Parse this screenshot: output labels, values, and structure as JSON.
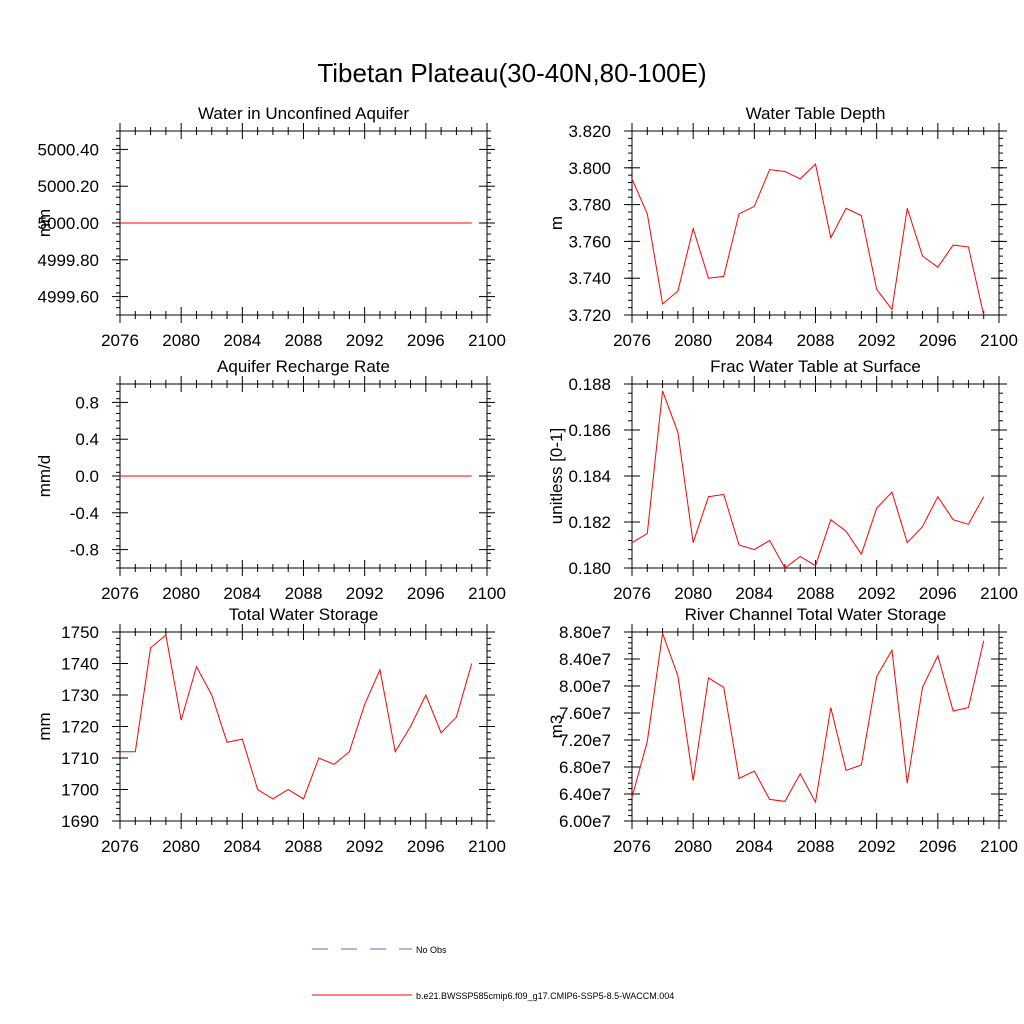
{
  "title": "Tibetan Plateau(30-40N,80-100E)",
  "colors": {
    "series": "#ff0000",
    "obs": "#6a6ab0",
    "axis": "#000000"
  },
  "legend": {
    "placement": "bottom-center",
    "entries": [
      {
        "label": "No Obs",
        "style": "dashed",
        "color": "#6a6ab0"
      },
      {
        "label": "b.e21.BWSSP585cmip6.f09_g17.CMIP6-SSP5-8.5-WACCM.004",
        "style": "solid",
        "color": "#ff0000"
      }
    ]
  },
  "chart_data": [
    {
      "type": "line",
      "title": "Water in Unconfined Aquifer",
      "ylabel": "mm",
      "xlim": [
        2076,
        2100
      ],
      "ylim": [
        4999.5,
        5000.5
      ],
      "xticks": [
        2076,
        2080,
        2084,
        2088,
        2092,
        2096,
        2100
      ],
      "xtick_labels": [
        "2076",
        "2080",
        "2084",
        "2088",
        "2092",
        "2096",
        "2100"
      ],
      "yticks": [
        4999.6,
        4999.8,
        5000.0,
        5000.2,
        5000.4
      ],
      "ytick_labels": [
        "4999.60",
        "4999.80",
        "5000.00",
        "5000.20",
        "5000.40"
      ],
      "x": [
        2076,
        2077,
        2078,
        2079,
        2080,
        2081,
        2082,
        2083,
        2084,
        2085,
        2086,
        2087,
        2088,
        2089,
        2090,
        2091,
        2092,
        2093,
        2094,
        2095,
        2096,
        2097,
        2098,
        2099
      ],
      "series": [
        {
          "values": [
            5000,
            5000,
            5000,
            5000,
            5000,
            5000,
            5000,
            5000,
            5000,
            5000,
            5000,
            5000,
            5000,
            5000,
            5000,
            5000,
            5000,
            5000,
            5000,
            5000,
            5000,
            5000,
            5000,
            5000
          ]
        }
      ]
    },
    {
      "type": "line",
      "title": "Water Table Depth",
      "ylabel": "m",
      "xlim": [
        2076,
        2100
      ],
      "ylim": [
        3.72,
        3.82
      ],
      "xticks": [
        2076,
        2080,
        2084,
        2088,
        2092,
        2096,
        2100
      ],
      "xtick_labels": [
        "2076",
        "2080",
        "2084",
        "2088",
        "2092",
        "2096",
        "2100"
      ],
      "yticks": [
        3.72,
        3.74,
        3.76,
        3.78,
        3.8,
        3.82
      ],
      "ytick_labels": [
        "3.720",
        "3.740",
        "3.760",
        "3.780",
        "3.800",
        "3.820"
      ],
      "x": [
        2076,
        2077,
        2078,
        2079,
        2080,
        2081,
        2082,
        2083,
        2084,
        2085,
        2086,
        2087,
        2088,
        2089,
        2090,
        2091,
        2092,
        2093,
        2094,
        2095,
        2096,
        2097,
        2098,
        2099
      ],
      "series": [
        {
          "values": [
            3.794,
            3.775,
            3.726,
            3.733,
            3.767,
            3.74,
            3.741,
            3.775,
            3.779,
            3.799,
            3.798,
            3.794,
            3.802,
            3.762,
            3.778,
            3.774,
            3.734,
            3.723,
            3.778,
            3.752,
            3.746,
            3.758,
            3.757,
            3.72
          ]
        }
      ]
    },
    {
      "type": "line",
      "title": "Aquifer Recharge Rate",
      "ylabel": "mm/d",
      "xlim": [
        2076,
        2100
      ],
      "ylim": [
        -1.0,
        1.0
      ],
      "xticks": [
        2076,
        2080,
        2084,
        2088,
        2092,
        2096,
        2100
      ],
      "xtick_labels": [
        "2076",
        "2080",
        "2084",
        "2088",
        "2092",
        "2096",
        "2100"
      ],
      "yticks": [
        -0.8,
        -0.4,
        0.0,
        0.4,
        0.8
      ],
      "ytick_labels": [
        "-0.8",
        "-0.4",
        "0.0",
        "0.4",
        "0.8"
      ],
      "x": [
        2076,
        2077,
        2078,
        2079,
        2080,
        2081,
        2082,
        2083,
        2084,
        2085,
        2086,
        2087,
        2088,
        2089,
        2090,
        2091,
        2092,
        2093,
        2094,
        2095,
        2096,
        2097,
        2098,
        2099
      ],
      "series": [
        {
          "values": [
            0,
            0,
            0,
            0,
            0,
            0,
            0,
            0,
            0,
            0,
            0,
            0,
            0,
            0,
            0,
            0,
            0,
            0,
            0,
            0,
            0,
            0,
            0,
            0
          ]
        }
      ]
    },
    {
      "type": "line",
      "title": "Frac Water Table at Surface",
      "ylabel": "unitless [0-1]",
      "xlim": [
        2076,
        2100
      ],
      "ylim": [
        0.18,
        0.188
      ],
      "xticks": [
        2076,
        2080,
        2084,
        2088,
        2092,
        2096,
        2100
      ],
      "xtick_labels": [
        "2076",
        "2080",
        "2084",
        "2088",
        "2092",
        "2096",
        "2100"
      ],
      "yticks": [
        0.18,
        0.182,
        0.184,
        0.186,
        0.188
      ],
      "ytick_labels": [
        "0.180",
        "0.182",
        "0.184",
        "0.186",
        "0.188"
      ],
      "x": [
        2076,
        2077,
        2078,
        2079,
        2080,
        2081,
        2082,
        2083,
        2084,
        2085,
        2086,
        2087,
        2088,
        2089,
        2090,
        2091,
        2092,
        2093,
        2094,
        2095,
        2096,
        2097,
        2098,
        2099
      ],
      "series": [
        {
          "values": [
            0.1811,
            0.1815,
            0.1877,
            0.1859,
            0.1811,
            0.1831,
            0.1832,
            0.181,
            0.1808,
            0.1812,
            0.18,
            0.1805,
            0.1801,
            0.1821,
            0.1816,
            0.1806,
            0.1826,
            0.1833,
            0.1811,
            0.1818,
            0.1831,
            0.1821,
            0.1819,
            0.1831
          ]
        }
      ]
    },
    {
      "type": "line",
      "title": "Total Water Storage",
      "ylabel": "mm",
      "xlim": [
        2076,
        2100
      ],
      "ylim": [
        1690,
        1750
      ],
      "xticks": [
        2076,
        2080,
        2084,
        2088,
        2092,
        2096,
        2100
      ],
      "xtick_labels": [
        "2076",
        "2080",
        "2084",
        "2088",
        "2092",
        "2096",
        "2100"
      ],
      "yticks": [
        1690,
        1700,
        1710,
        1720,
        1730,
        1740,
        1750
      ],
      "ytick_labels": [
        "1690",
        "1700",
        "1710",
        "1720",
        "1730",
        "1740",
        "1750"
      ],
      "x": [
        2076,
        2077,
        2078,
        2079,
        2080,
        2081,
        2082,
        2083,
        2084,
        2085,
        2086,
        2087,
        2088,
        2089,
        2090,
        2091,
        2092,
        2093,
        2094,
        2095,
        2096,
        2097,
        2098,
        2099
      ],
      "series": [
        {
          "values": [
            1712,
            1712,
            1745,
            1749,
            1722,
            1739,
            1730,
            1715,
            1716,
            1700,
            1697,
            1700,
            1697,
            1710,
            1708,
            1712,
            1727,
            1738,
            1712,
            1720,
            1730,
            1718,
            1723,
            1740
          ]
        }
      ]
    },
    {
      "type": "line",
      "title": "River Channel Total Water Storage",
      "ylabel": "m3",
      "xlim": [
        2076,
        2100
      ],
      "ylim": [
        60000000.0,
        88000000.0
      ],
      "xticks": [
        2076,
        2080,
        2084,
        2088,
        2092,
        2096,
        2100
      ],
      "xtick_labels": [
        "2076",
        "2080",
        "2084",
        "2088",
        "2092",
        "2096",
        "2100"
      ],
      "yticks": [
        60000000.0,
        64000000.0,
        68000000.0,
        72000000.0,
        76000000.0,
        80000000.0,
        84000000.0,
        88000000.0
      ],
      "ytick_labels": [
        "6.00e7",
        "6.40e7",
        "6.80e7",
        "7.20e7",
        "7.60e7",
        "8.00e7",
        "8.40e7",
        "8.80e7"
      ],
      "x": [
        2076,
        2077,
        2078,
        2079,
        2080,
        2081,
        2082,
        2083,
        2084,
        2085,
        2086,
        2087,
        2088,
        2089,
        2090,
        2091,
        2092,
        2093,
        2094,
        2095,
        2096,
        2097,
        2098,
        2099
      ],
      "series": [
        {
          "values": [
            63500000.0,
            71800000.0,
            87800000.0,
            81500000.0,
            66000000.0,
            81200000.0,
            79800000.0,
            66300000.0,
            67400000.0,
            63200000.0,
            62900000.0,
            67000000.0,
            62800000.0,
            76800000.0,
            67500000.0,
            68300000.0,
            81400000.0,
            85300000.0,
            65600000.0,
            79800000.0,
            84500000.0,
            76300000.0,
            76800000.0,
            86700000.0
          ]
        }
      ]
    }
  ]
}
